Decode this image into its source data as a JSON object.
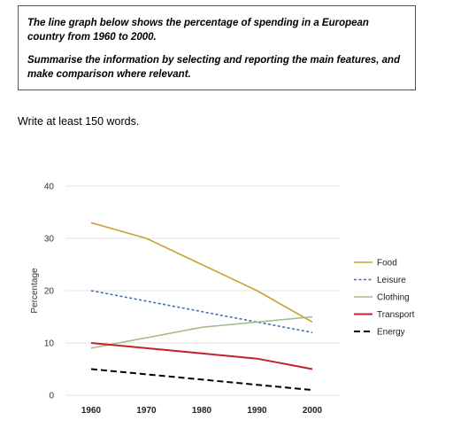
{
  "task": {
    "line1": "The line graph below shows the percentage of spending in a European country from 1960 to 2000.",
    "line2": "Summarise the information by selecting and reporting the main features, and make comparison where relevant."
  },
  "instruction": "Write at least 150 words.",
  "chart_data": {
    "type": "line",
    "title": "",
    "xlabel": "",
    "ylabel": "Percentage",
    "x": [
      1960,
      1970,
      1980,
      1990,
      2000
    ],
    "ylim": [
      0,
      40
    ],
    "yticks": [
      0,
      10,
      20,
      30,
      40
    ],
    "grid": true,
    "legend_position": "right",
    "series": [
      {
        "name": "Food",
        "values": [
          33,
          30,
          25,
          20,
          14
        ],
        "color": "#c8a232",
        "dash": "solid"
      },
      {
        "name": "Leisure",
        "values": [
          20,
          18,
          16,
          14,
          12
        ],
        "color": "#3f6fb5",
        "dash": "dashed-short"
      },
      {
        "name": "Clothing",
        "values": [
          9,
          11,
          13,
          14,
          15
        ],
        "color": "#a4bc84",
        "dash": "solid"
      },
      {
        "name": "Transport",
        "values": [
          10,
          9,
          8,
          7,
          5
        ],
        "color": "#c0242b",
        "dash": "solid"
      },
      {
        "name": "Energy",
        "values": [
          5,
          4,
          3,
          2,
          1
        ],
        "color": "#000000",
        "dash": "dashed-long"
      }
    ]
  }
}
